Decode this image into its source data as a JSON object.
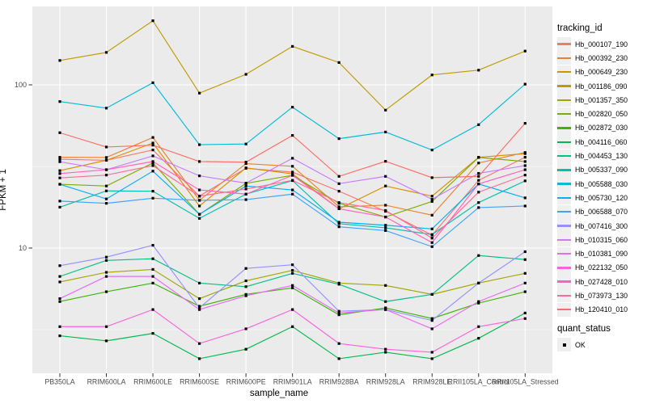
{
  "figure": {
    "panel_background": "#EBEBEB",
    "grid_color": "#FFFFFF",
    "tick_color": "#333333",
    "tick_label_color": "#4D4D4D",
    "point_color": "#000000"
  },
  "axes": {
    "x": {
      "title": "sample_name"
    },
    "y": {
      "title": "FPKM + 1",
      "ticks": [
        {
          "label": "100",
          "value": 100
        },
        {
          "label": "10",
          "value": 10
        }
      ],
      "minor_values": [
        31.62,
        3.162
      ]
    }
  },
  "legend": {
    "tracking_title": "tracking_id",
    "quant_title": "quant_status",
    "quant_items": [
      {
        "label": "OK"
      }
    ]
  },
  "chart_data": {
    "type": "line",
    "title": "",
    "xlabel": "sample_name",
    "ylabel": "FPKM + 1",
    "y_scale": "log10",
    "ylim": [
      1.4,
      320
    ],
    "grid": true,
    "legend_position": "right",
    "point_shape": "filled-square",
    "quant_status": "OK",
    "categories": [
      "PB350LA",
      "RRIM600LA",
      "RRIM600LE",
      "RRIM600SE",
      "RRIM600PE",
      "RRIM901LA",
      "RRIM928BA",
      "RRIM928LA",
      "RRIM928LE",
      "RRII105LA_Control",
      "RRII105LA_Stressed"
    ],
    "series": [
      {
        "name": "Hb_000107_190",
        "color": "#F8766D",
        "values": [
          35,
          34.5,
          39.9,
          20.8,
          30.8,
          29.2,
          22.3,
          16.8,
          12,
          26,
          36
        ]
      },
      {
        "name": "Hb_000392_230",
        "color": "#EA8331",
        "values": [
          36,
          35.9,
          47.6,
          19.6,
          32.9,
          31.7,
          17.9,
          18.3,
          15.9,
          33.2,
          38.5
        ]
      },
      {
        "name": "Hb_000649_230",
        "color": "#D89000",
        "values": [
          29.8,
          34.5,
          44,
          18.1,
          31,
          28.5,
          17.4,
          24,
          20.8,
          36,
          37.9
        ]
      },
      {
        "name": "Hb_001186_090",
        "color": "#C09B00",
        "values": [
          141,
          158,
          247,
          89,
          116,
          172,
          137,
          70,
          115,
          123,
          161
        ]
      },
      {
        "name": "Hb_001357_350",
        "color": "#A3A500",
        "values": [
          6.2,
          7.1,
          7.4,
          4.9,
          6.3,
          7.3,
          6.1,
          5.9,
          5.2,
          6.1,
          7
        ]
      },
      {
        "name": "Hb_002820_050",
        "color": "#7CAE00",
        "values": [
          24.6,
          24,
          33.2,
          16.1,
          24.9,
          27.9,
          18.8,
          15.5,
          19.3,
          35.9,
          33.9
        ]
      },
      {
        "name": "Hb_002872_030",
        "color": "#39B600",
        "values": [
          4.7,
          5.4,
          6.1,
          4.4,
          5.2,
          5.7,
          3.9,
          4.3,
          3.7,
          4.6,
          5.4
        ]
      },
      {
        "name": "Hb_004116_060",
        "color": "#00BB4E",
        "values": [
          2.9,
          2.7,
          3,
          2.1,
          2.4,
          3.3,
          2.1,
          2.3,
          2.1,
          2.8,
          4
        ]
      },
      {
        "name": "Hb_004453_130",
        "color": "#00C087",
        "values": [
          6.7,
          8.4,
          8.6,
          6.1,
          5.8,
          7,
          6,
          4.7,
          5.2,
          9,
          8.5
        ]
      },
      {
        "name": "Hb_005337_090",
        "color": "#00C0AF",
        "values": [
          17.8,
          22.4,
          22.3,
          15.2,
          21.4,
          25.9,
          14.1,
          13.3,
          12.1,
          19,
          25.8
        ]
      },
      {
        "name": "Hb_005588_030",
        "color": "#00BCD8",
        "values": [
          79,
          72,
          103,
          43,
          43.4,
          73,
          46.8,
          51.4,
          39.9,
          57,
          101
        ]
      },
      {
        "name": "Hb_005730_120",
        "color": "#00B0F6",
        "values": [
          24.6,
          20,
          29.6,
          16.1,
          24,
          22.7,
          14.4,
          13.8,
          13.1,
          24.7,
          20.3
        ]
      },
      {
        "name": "Hb_006588_070",
        "color": "#3FA2FF",
        "values": [
          19.4,
          18.8,
          20.2,
          19.6,
          19.8,
          21.4,
          13.5,
          12.8,
          10.2,
          17.7,
          18.1
        ]
      },
      {
        "name": "Hb_007416_300",
        "color": "#9590FF",
        "values": [
          7.8,
          8.8,
          10.4,
          4.3,
          7.5,
          7.9,
          4.1,
          4.2,
          3.6,
          6.1,
          9.5
        ]
      },
      {
        "name": "Hb_010315_060",
        "color": "#C77CFF",
        "values": [
          33.8,
          30.2,
          36.7,
          27.7,
          25,
          35.5,
          24.8,
          27.5,
          19.9,
          28.7,
          32
        ]
      },
      {
        "name": "Hb_010381_090",
        "color": "#E76BF3",
        "values": [
          4.9,
          6.7,
          6.7,
          4.2,
          5.1,
          5.9,
          4,
          4.2,
          3.2,
          4.7,
          6.1
        ]
      },
      {
        "name": "Hb_022132_050",
        "color": "#FA62DB",
        "values": [
          3.3,
          3.3,
          4.2,
          2.6,
          3.2,
          4.2,
          2.6,
          2.4,
          2.3,
          3.3,
          3.7
        ]
      },
      {
        "name": "Hb_027428_010",
        "color": "#FF62BC",
        "values": [
          28.6,
          30.2,
          33.9,
          22.7,
          21.4,
          27.9,
          17.4,
          15.5,
          10.8,
          24.7,
          30.2
        ]
      },
      {
        "name": "Hb_073973_130",
        "color": "#FF6A98",
        "values": [
          26.9,
          28,
          32,
          20.8,
          23,
          26,
          19,
          17,
          11.5,
          22,
          28
        ]
      },
      {
        "name": "Hb_120410_010",
        "color": "#FF6C67",
        "values": [
          50.9,
          41.6,
          42.7,
          33.9,
          33.6,
          49,
          27.5,
          34,
          27,
          27.5,
          58.1
        ]
      }
    ]
  }
}
